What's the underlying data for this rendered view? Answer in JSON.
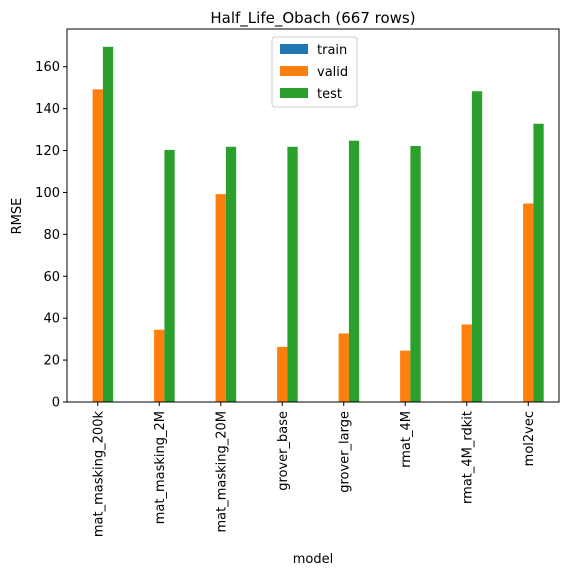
{
  "chart_data": {
    "type": "bar",
    "title": "Half_Life_Obach (667 rows)",
    "xlabel": "model",
    "ylabel": "RMSE",
    "categories": [
      "mat_masking_200k",
      "mat_masking_2M",
      "mat_masking_20M",
      "grover_base",
      "grover_large",
      "rmat_4M",
      "rmat_4M_rdkit",
      "mol2vec"
    ],
    "series": [
      {
        "name": "train",
        "color": "#1f77b4",
        "values": [
          0,
          0,
          0,
          0,
          0,
          0,
          0,
          0
        ]
      },
      {
        "name": "valid",
        "color": "#ff7f0e",
        "values": [
          149.2,
          34.5,
          99.2,
          26.3,
          32.7,
          24.5,
          37.0,
          94.7
        ]
      },
      {
        "name": "test",
        "color": "#2ca02c",
        "values": [
          169.5,
          120.3,
          121.8,
          121.8,
          124.7,
          122.2,
          148.3,
          132.8
        ]
      }
    ],
    "ylim": [
      0,
      178
    ],
    "yticks": [
      0,
      20,
      40,
      60,
      80,
      100,
      120,
      140,
      160
    ],
    "grid": false,
    "legend_position": "top-center"
  }
}
